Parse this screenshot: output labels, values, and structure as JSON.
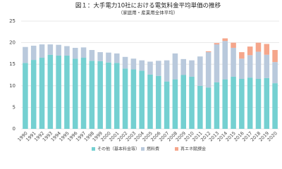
{
  "chart_data": {
    "type": "stacked_bar",
    "title": "図１：大手電力10社における電気料金平均単価の推移",
    "subtitle": "（家庭用・産業用全体平均）",
    "categories": [
      "1990",
      "1991",
      "1992",
      "1993",
      "1994",
      "1995",
      "1996",
      "1997",
      "1998",
      "1999",
      "2000",
      "2001",
      "2002",
      "2003",
      "2004",
      "2005",
      "2006",
      "2007",
      "2008",
      "2009",
      "2010",
      "2011",
      "2012",
      "2013",
      "2014",
      "2015",
      "2016",
      "2017",
      "2018",
      "2019",
      "2020"
    ],
    "series": [
      {
        "name": "その他（基本料金等）",
        "color": "#74d0d1",
        "values": [
          15.3,
          16.0,
          16.5,
          17.2,
          17.0,
          17.0,
          16.3,
          16.5,
          15.8,
          15.7,
          15.4,
          15.3,
          14.0,
          13.8,
          13.5,
          12.6,
          12.3,
          11.0,
          11.5,
          12.5,
          12.1,
          10.0,
          9.6,
          10.8,
          11.5,
          12.1,
          11.6,
          11.9,
          11.6,
          11.8,
          10.6
        ]
      },
      {
        "name": "燃料費",
        "color": "#b9c9dc",
        "values": [
          3.7,
          3.3,
          3.1,
          2.4,
          2.5,
          2.2,
          2.5,
          2.4,
          2.5,
          2.1,
          2.3,
          2.2,
          2.7,
          2.5,
          2.4,
          3.0,
          3.5,
          4.9,
          6.0,
          3.7,
          3.8,
          6.8,
          8.2,
          8.8,
          8.9,
          6.7,
          4.7,
          5.2,
          6.3,
          5.4,
          4.9
        ]
      },
      {
        "name": "再エネ賦課金",
        "color": "#f5a68b",
        "values": [
          null,
          null,
          null,
          null,
          null,
          null,
          null,
          null,
          null,
          null,
          null,
          null,
          null,
          null,
          null,
          null,
          null,
          null,
          null,
          null,
          null,
          null,
          0.2,
          0.3,
          0.6,
          1.2,
          1.5,
          2.0,
          2.1,
          2.5,
          2.8
        ]
      }
    ],
    "ylim": [
      0,
      25
    ],
    "yticks": [
      0,
      5,
      10,
      15,
      20,
      25
    ],
    "grid": true
  }
}
